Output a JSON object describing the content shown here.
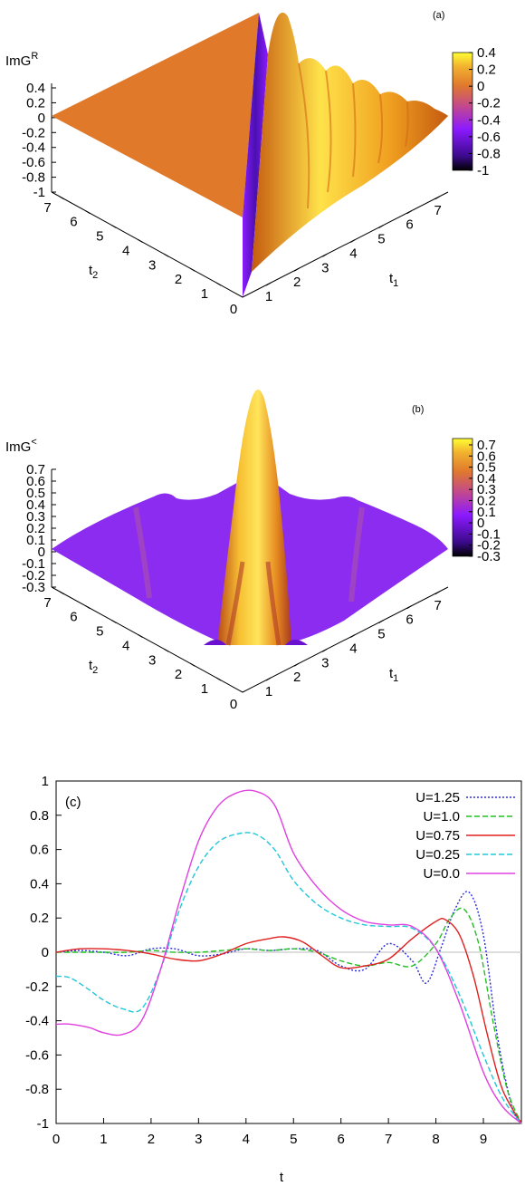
{
  "chart_data": [
    {
      "type": "surface3d",
      "panel_label": "(a)",
      "zlabel": "ImG",
      "zlabel_sup": "R",
      "z_ticks": [
        "0.4",
        "0.2",
        "0",
        "-0.2",
        "-0.4",
        "-0.6",
        "-0.8",
        "-1"
      ],
      "t2_label": "t",
      "t2_sub": "2",
      "t1_label": "t",
      "t1_sub": "1",
      "t_ticks": [
        "0",
        "1",
        "2",
        "3",
        "4",
        "5",
        "6",
        "7"
      ],
      "colorbar_ticks": [
        "0.4",
        "0.2",
        "0",
        "-0.2",
        "-0.4",
        "-0.6",
        "-0.8",
        "-1"
      ],
      "colorbar_range": [
        -1,
        0.4
      ],
      "colormap": [
        "#000000",
        "#3b0a8c",
        "#8c1aff",
        "#c44a8a",
        "#e0782d",
        "#f2b12e",
        "#ffff33"
      ]
    },
    {
      "type": "surface3d",
      "panel_label": "(b)",
      "zlabel": "ImG",
      "zlabel_sup": "<",
      "z_ticks": [
        "0.7",
        "0.6",
        "0.5",
        "0.4",
        "0.3",
        "0.2",
        "0.1",
        "0",
        "-0.1",
        "-0.2",
        "-0.3"
      ],
      "t2_label": "t",
      "t2_sub": "2",
      "t1_label": "t",
      "t1_sub": "1",
      "t_ticks": [
        "0",
        "1",
        "2",
        "3",
        "4",
        "5",
        "6",
        "7"
      ],
      "colorbar_ticks": [
        "0.7",
        "0.6",
        "0.5",
        "0.4",
        "0.3",
        "0.2",
        "0.1",
        "0",
        "-0.1",
        "-0.2",
        "-0.3"
      ],
      "colorbar_range": [
        -0.3,
        0.7
      ],
      "colormap": [
        "#000000",
        "#3b0a8c",
        "#8c1aff",
        "#c44a8a",
        "#e0782d",
        "#f2b12e",
        "#ffff33"
      ]
    },
    {
      "type": "line",
      "panel_label": "(c)",
      "xlabel": "t",
      "ylabel": "",
      "xlim": [
        0,
        9.8
      ],
      "ylim": [
        -1,
        1
      ],
      "x_ticks": [
        0,
        1,
        2,
        3,
        4,
        5,
        6,
        7,
        8,
        9
      ],
      "y_ticks": [
        1,
        0.8,
        0.6,
        0.4,
        0.2,
        0,
        -0.2,
        -0.4,
        -0.6,
        -0.8,
        -1
      ],
      "y_tick_labels": [
        "1",
        "0.8",
        "0.6",
        "0.4",
        "0.2",
        "0",
        "-0.2",
        "-0.4",
        "-0.6",
        "-0.8",
        "-1"
      ],
      "legend_position": "top-right",
      "series": [
        {
          "name": "U=1.25",
          "color": "#2a2ae0",
          "dash": "2,2",
          "x": [
            0,
            0.5,
            1,
            1.5,
            2,
            2.5,
            3,
            3.5,
            4,
            4.5,
            5,
            5.5,
            6,
            6.5,
            7,
            7.5,
            7.8,
            8.1,
            8.4,
            8.7,
            9,
            9.3,
            9.6,
            9.8
          ],
          "y": [
            0,
            0.01,
            0.0,
            -0.02,
            0.02,
            0.02,
            -0.02,
            -0.01,
            0.02,
            0.01,
            0.02,
            0.01,
            -0.08,
            -0.1,
            0.05,
            -0.05,
            -0.18,
            0.02,
            0.25,
            0.35,
            0.1,
            -0.5,
            -0.9,
            -1
          ]
        },
        {
          "name": "U=1.0",
          "color": "#22c022",
          "dash": "6,3",
          "x": [
            0,
            0.5,
            1,
            1.5,
            2,
            2.5,
            3,
            3.5,
            4,
            4.5,
            5,
            5.5,
            6,
            6.5,
            7,
            7.5,
            8,
            8.3,
            8.6,
            8.9,
            9.2,
            9.5,
            9.8
          ],
          "y": [
            0,
            0.0,
            0.0,
            0.0,
            0.01,
            0.0,
            0.0,
            0.01,
            0.02,
            0.01,
            0.02,
            0.0,
            -0.05,
            -0.08,
            -0.06,
            -0.08,
            0.05,
            0.2,
            0.25,
            0.05,
            -0.4,
            -0.8,
            -1
          ]
        },
        {
          "name": "U=0.75",
          "color": "#e02020",
          "dash": "",
          "x": [
            0,
            0.5,
            1,
            1.5,
            2,
            2.5,
            3,
            3.5,
            4,
            4.5,
            4.8,
            5.2,
            5.6,
            6,
            6.5,
            7,
            7.5,
            8,
            8.2,
            8.5,
            8.8,
            9.1,
            9.4,
            9.8
          ],
          "y": [
            0,
            0.02,
            0.02,
            0.01,
            -0.01,
            -0.04,
            -0.05,
            -0.01,
            0.05,
            0.08,
            0.09,
            0.06,
            -0.02,
            -0.09,
            -0.08,
            -0.04,
            0.08,
            0.18,
            0.19,
            0.1,
            -0.15,
            -0.5,
            -0.8,
            -1
          ]
        },
        {
          "name": "U=0.25",
          "color": "#20c8d8",
          "dash": "6,3",
          "x": [
            0,
            0.3,
            0.7,
            1,
            1.4,
            1.8,
            2.2,
            2.6,
            3,
            3.4,
            3.8,
            4.2,
            4.6,
            5,
            5.5,
            6,
            6.5,
            7,
            7.5,
            8,
            8.5,
            9,
            9.4,
            9.8
          ],
          "y": [
            -0.14,
            -0.15,
            -0.22,
            -0.28,
            -0.33,
            -0.33,
            -0.1,
            0.25,
            0.5,
            0.64,
            0.69,
            0.69,
            0.6,
            0.42,
            0.28,
            0.2,
            0.16,
            0.15,
            0.14,
            0.02,
            -0.25,
            -0.6,
            -0.85,
            -1
          ]
        },
        {
          "name": "U=0.0",
          "color": "#e040e0",
          "dash": "",
          "x": [
            0,
            0.3,
            0.7,
            1,
            1.4,
            1.8,
            2.2,
            2.6,
            3,
            3.4,
            3.8,
            4.2,
            4.6,
            5,
            5.5,
            6,
            6.5,
            7,
            7.5,
            8,
            8.5,
            9,
            9.4,
            9.8
          ],
          "y": [
            -0.42,
            -0.42,
            -0.44,
            -0.47,
            -0.48,
            -0.4,
            -0.1,
            0.3,
            0.65,
            0.85,
            0.93,
            0.94,
            0.86,
            0.58,
            0.38,
            0.25,
            0.18,
            0.16,
            0.15,
            0.02,
            -0.3,
            -0.7,
            -0.9,
            -1
          ]
        }
      ]
    }
  ]
}
